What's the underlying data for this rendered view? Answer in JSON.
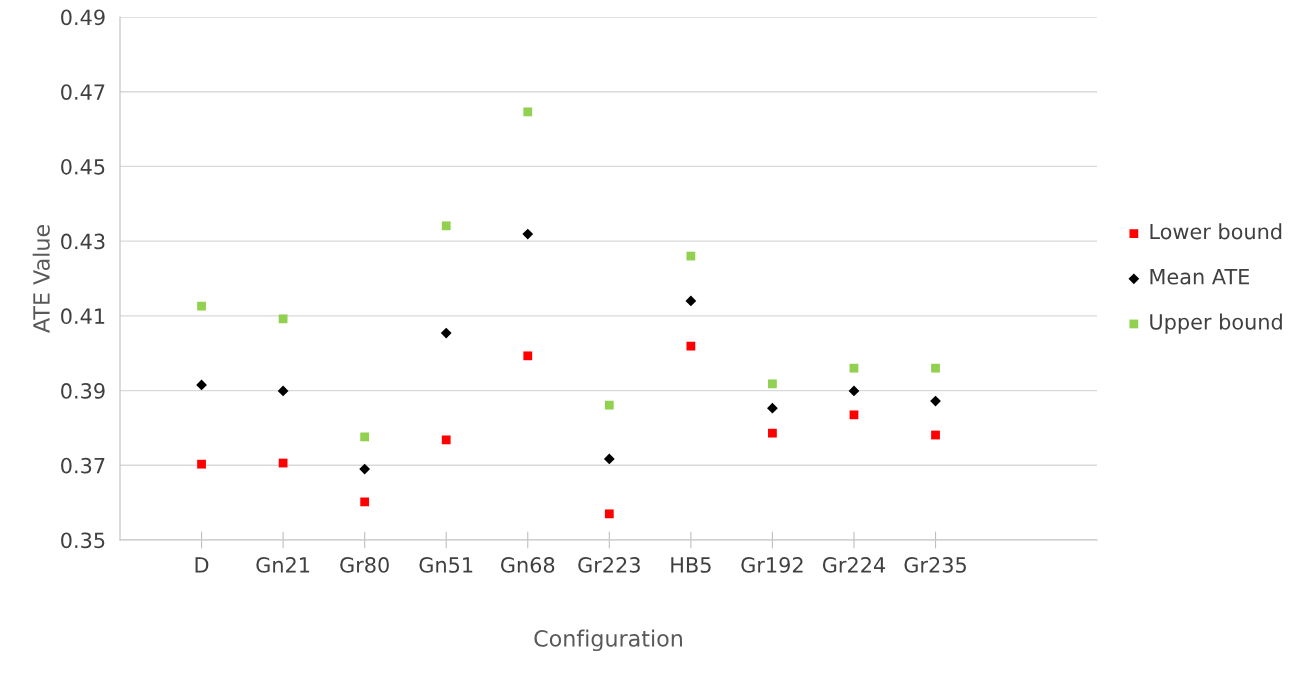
{
  "chart_data": {
    "type": "scatter",
    "xlabel": "Configuration",
    "ylabel": "ATE Value",
    "categories": [
      "D",
      "Gn21",
      "Gr80",
      "Gn51",
      "Gn68",
      "Gr223",
      "HB5",
      "Gr192",
      "Gr224",
      "Gr235"
    ],
    "series": [
      {
        "name": "Lower bound",
        "color": "#ff0000",
        "marker": "square",
        "values": [
          0.3703,
          0.3706,
          0.3602,
          0.3768,
          0.3993,
          0.357,
          0.4019,
          0.3786,
          0.3835,
          0.3781
        ]
      },
      {
        "name": "Mean ATE",
        "color": "#000000",
        "marker": "diamond",
        "values": [
          0.3915,
          0.3899,
          0.369,
          0.4054,
          0.4319,
          0.3717,
          0.414,
          0.3853,
          0.3899,
          0.3872
        ]
      },
      {
        "name": "Upper bound",
        "color": "#92d050",
        "marker": "square",
        "values": [
          0.4126,
          0.4092,
          0.3776,
          0.4341,
          0.4646,
          0.3861,
          0.426,
          0.3918,
          0.396,
          0.396
        ]
      }
    ],
    "ylim": [
      0.35,
      0.49
    ],
    "yticks": [
      0.35,
      0.37,
      0.39,
      0.41,
      0.43,
      0.45,
      0.47,
      0.49
    ],
    "grid": "y",
    "legend": "right"
  }
}
